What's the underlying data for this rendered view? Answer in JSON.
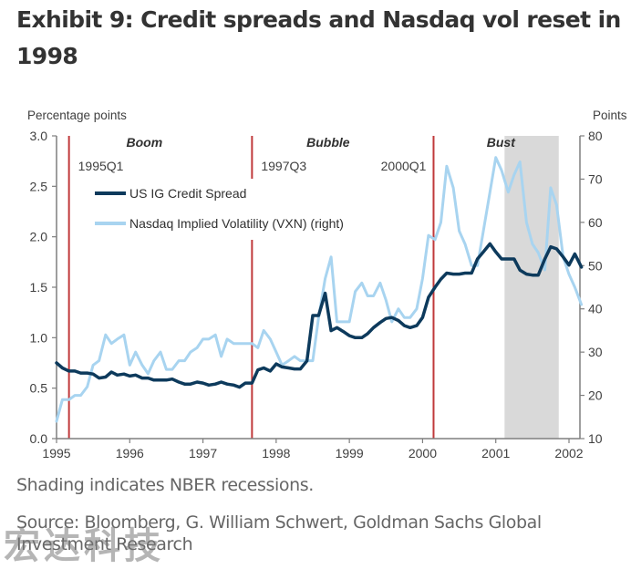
{
  "header": {
    "title": "Exhibit 9: Credit spreads and Nasdaq vol reset in 1998"
  },
  "footer": {
    "note": "Shading indicates NBER recessions.",
    "source": "Source: Bloomberg, G. William Schwert, Goldman Sachs Global Investment Research",
    "watermark": "宏达科技"
  },
  "chart_data": {
    "type": "line",
    "title": "Exhibit 9: Credit spreads and Nasdaq vol reset in 1998",
    "xlabel": "",
    "ylabel_left": "Percentage points",
    "ylabel_right": "Points",
    "xlim": [
      1995,
      2002.17
    ],
    "ylim_left": [
      0,
      3.0
    ],
    "ylim_right": [
      10,
      80
    ],
    "x_ticks": [
      1995,
      1996,
      1997,
      1998,
      1999,
      2000,
      2001,
      2002
    ],
    "x_tick_labels": [
      "1995",
      "1996",
      "1997",
      "1998",
      "1999",
      "2000",
      "2001",
      "2002"
    ],
    "y_left_ticks": [
      0.0,
      0.5,
      1.0,
      1.5,
      2.0,
      2.5,
      3.0
    ],
    "y_left_tick_labels": [
      "0.0",
      "0.5",
      "1.0",
      "1.5",
      "2.0",
      "2.5",
      "3.0"
    ],
    "y_right_ticks": [
      10,
      20,
      30,
      40,
      50,
      60,
      70,
      80
    ],
    "y_right_tick_labels": [
      "10",
      "20",
      "30",
      "40",
      "50",
      "60",
      "70",
      "80"
    ],
    "grid": false,
    "legend_position": "top-left",
    "colors": {
      "credit_spread": "#0d3a5c",
      "vxn": "#a8d4f0",
      "event_line": "#c0393b",
      "recession": "#d9d9d9",
      "axis": "#7f7f7f"
    },
    "series": [
      {
        "name": "US IG Credit Spread",
        "axis": "left",
        "x": [
          1995.0,
          1995.08,
          1995.17,
          1995.25,
          1995.33,
          1995.42,
          1995.5,
          1995.58,
          1995.67,
          1995.75,
          1995.83,
          1995.92,
          1996.0,
          1996.08,
          1996.17,
          1996.25,
          1996.33,
          1996.42,
          1996.5,
          1996.58,
          1996.67,
          1996.75,
          1996.83,
          1996.92,
          1997.0,
          1997.08,
          1997.17,
          1997.25,
          1997.33,
          1997.42,
          1997.5,
          1997.58,
          1997.67,
          1997.75,
          1997.83,
          1997.92,
          1998.0,
          1998.08,
          1998.17,
          1998.25,
          1998.33,
          1998.42,
          1998.5,
          1998.58,
          1998.67,
          1998.75,
          1998.83,
          1998.92,
          1999.0,
          1999.08,
          1999.17,
          1999.25,
          1999.33,
          1999.42,
          1999.5,
          1999.58,
          1999.67,
          1999.75,
          1999.83,
          1999.92,
          2000.0,
          2000.08,
          2000.17,
          2000.25,
          2000.33,
          2000.42,
          2000.5,
          2000.58,
          2000.67,
          2000.75,
          2000.83,
          2000.92,
          2001.0,
          2001.08,
          2001.17,
          2001.25,
          2001.33,
          2001.42,
          2001.5,
          2001.58,
          2001.67,
          2001.75,
          2001.83,
          2001.92,
          2002.0,
          2002.08,
          2002.17
        ],
        "values": [
          0.75,
          0.7,
          0.67,
          0.67,
          0.65,
          0.65,
          0.64,
          0.6,
          0.61,
          0.66,
          0.63,
          0.64,
          0.62,
          0.63,
          0.6,
          0.6,
          0.58,
          0.58,
          0.58,
          0.59,
          0.56,
          0.54,
          0.54,
          0.56,
          0.55,
          0.53,
          0.54,
          0.56,
          0.54,
          0.53,
          0.51,
          0.55,
          0.55,
          0.68,
          0.7,
          0.67,
          0.74,
          0.71,
          0.7,
          0.69,
          0.69,
          0.77,
          1.22,
          1.22,
          1.44,
          1.07,
          1.1,
          1.06,
          1.02,
          1.0,
          1.0,
          1.04,
          1.1,
          1.15,
          1.19,
          1.2,
          1.17,
          1.12,
          1.1,
          1.12,
          1.2,
          1.4,
          1.5,
          1.58,
          1.64,
          1.63,
          1.63,
          1.64,
          1.64,
          1.78,
          1.85,
          1.93,
          1.85,
          1.78,
          1.78,
          1.78,
          1.67,
          1.63,
          1.62,
          1.62,
          1.78,
          1.9,
          1.88,
          1.8,
          1.72,
          1.83,
          1.7
        ]
      },
      {
        "name": "Nasdaq Implied Volatility (VXN) (right)",
        "axis": "right",
        "x": [
          1995.0,
          1995.08,
          1995.17,
          1995.25,
          1995.33,
          1995.42,
          1995.5,
          1995.58,
          1995.67,
          1995.75,
          1995.83,
          1995.92,
          1996.0,
          1996.08,
          1996.17,
          1996.25,
          1996.33,
          1996.42,
          1996.5,
          1996.58,
          1996.67,
          1996.75,
          1996.83,
          1996.92,
          1997.0,
          1997.08,
          1997.17,
          1997.25,
          1997.33,
          1997.42,
          1997.5,
          1997.58,
          1997.67,
          1997.75,
          1997.83,
          1997.92,
          1998.0,
          1998.08,
          1998.17,
          1998.25,
          1998.33,
          1998.42,
          1998.5,
          1998.58,
          1998.67,
          1998.75,
          1998.83,
          1998.92,
          1999.0,
          1999.08,
          1999.17,
          1999.25,
          1999.33,
          1999.42,
          1999.5,
          1999.58,
          1999.67,
          1999.75,
          1999.83,
          1999.92,
          2000.0,
          2000.08,
          2000.17,
          2000.25,
          2000.33,
          2000.42,
          2000.5,
          2000.58,
          2000.67,
          2000.75,
          2000.83,
          2000.92,
          2001.0,
          2001.08,
          2001.17,
          2001.25,
          2001.33,
          2001.42,
          2001.5,
          2001.58,
          2001.67,
          2001.75,
          2001.83,
          2001.92,
          2002.0,
          2002.08,
          2002.17
        ],
        "values": [
          14,
          19,
          19,
          20,
          20,
          22,
          27,
          28,
          34,
          32,
          33,
          34,
          27,
          30,
          27,
          25,
          28,
          30,
          26,
          26,
          28,
          28,
          30,
          31,
          33,
          33,
          34,
          29,
          33,
          32,
          32,
          32,
          32,
          31,
          35,
          33,
          30,
          27,
          28,
          29,
          28,
          28,
          28,
          38,
          47,
          52,
          37,
          37,
          37,
          44,
          46,
          43,
          43,
          46,
          42,
          37,
          40,
          38,
          38,
          40,
          47,
          57,
          56,
          60,
          73,
          68,
          58,
          55,
          50,
          50,
          58,
          67,
          75,
          72,
          67,
          71,
          74,
          60,
          55,
          53,
          49,
          68,
          64,
          52,
          48,
          45,
          41
        ]
      }
    ],
    "event_lines": [
      {
        "x": 1995.17,
        "label": "1995Q1",
        "era": "Boom"
      },
      {
        "x": 1997.67,
        "label": "1997Q3",
        "era": "Bubble"
      },
      {
        "x": 2000.15,
        "label": "2000Q1",
        "era": "Bust"
      }
    ],
    "eras": [
      {
        "label": "Boom",
        "x": 1996.2
      },
      {
        "label": "Bubble",
        "x": 1998.71
      },
      {
        "label": "Bust",
        "x": 2001.07
      }
    ],
    "recessions": [
      {
        "start": 2001.12,
        "end": 2001.86
      }
    ]
  }
}
